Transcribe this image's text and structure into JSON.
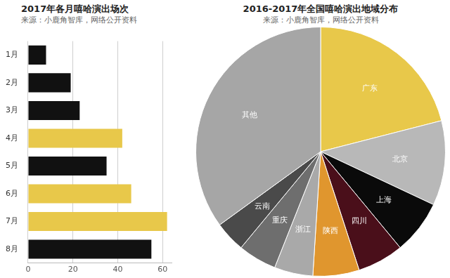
{
  "chart_data": [
    {
      "type": "bar",
      "title": "2017年各月嘻哈演出场次",
      "subtitle": "来源：小鹿角智库，网络公开资料",
      "orientation": "horizontal",
      "categories": [
        "1月",
        "2月",
        "3月",
        "4月",
        "5月",
        "6月",
        "7月",
        "8月"
      ],
      "values": [
        8,
        19,
        23,
        42,
        35,
        46,
        62,
        55
      ],
      "colors": [
        "#111111",
        "#111111",
        "#111111",
        "#e8c84a",
        "#111111",
        "#e8c84a",
        "#e8c84a",
        "#111111"
      ],
      "xlim": [
        0,
        64
      ],
      "xticks": [
        0,
        20,
        40,
        60
      ],
      "grid": true
    },
    {
      "type": "pie",
      "title": "2016-2017年全国嘻哈演出地域分布",
      "subtitle": "来源：小鹿角智库，网络公开资料",
      "categories": [
        "广东",
        "北京",
        "上海",
        "四川",
        "陕西",
        "浙江",
        "重庆",
        "云南",
        "其他"
      ],
      "values": [
        21,
        11,
        7,
        6,
        6,
        5,
        5,
        4,
        35
      ],
      "colors": [
        "#e8c84a",
        "#b8b8b8",
        "#0a0a0a",
        "#4a0f1a",
        "#e0962e",
        "#a9a9a9",
        "#6e6e6e",
        "#4a4a4a",
        "#a6a6a6"
      ]
    }
  ]
}
